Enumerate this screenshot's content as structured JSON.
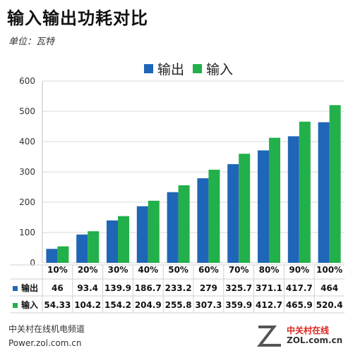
{
  "title": "输入输出功耗对比",
  "unit_label": "单位：瓦特",
  "footer_line1": "中关村在线机电频道",
  "footer_line2": "Power.zol.com.cn",
  "logo": {
    "cn": "中关村在线",
    "en": "ZOL.com.cn"
  },
  "colors": {
    "output": "#1f66b8",
    "input": "#22b04b",
    "grid": "#d9d9d9"
  },
  "chart_data": {
    "type": "bar",
    "title": "输入输出功耗对比",
    "ylabel": "单位：瓦特",
    "xlabel": "",
    "ylim": [
      0,
      600
    ],
    "yticks": [
      0,
      100,
      200,
      300,
      400,
      500,
      600
    ],
    "grid": true,
    "legend": "top-center",
    "categories": [
      "10%",
      "20%",
      "30%",
      "40%",
      "50%",
      "60%",
      "70%",
      "80%",
      "90%",
      "100%"
    ],
    "series": [
      {
        "name": "输出",
        "values": [
          46,
          93.4,
          139.9,
          186.7,
          233.2,
          279,
          325.7,
          371.1,
          417.7,
          464
        ],
        "labels": [
          "46",
          "93.4",
          "139.9",
          "186.7",
          "233.2",
          "279",
          "325.7",
          "371.1",
          "417.7",
          "464"
        ]
      },
      {
        "name": "输入",
        "values": [
          54.33,
          104.2,
          154.2,
          204.9,
          255.8,
          307.3,
          359.9,
          412.7,
          465.9,
          520.4
        ],
        "labels": [
          "54.33",
          "104.2",
          "154.2",
          "204.9",
          "255.8",
          "307.3",
          "359.9",
          "412.7",
          "465.9",
          "520.4"
        ]
      }
    ]
  }
}
